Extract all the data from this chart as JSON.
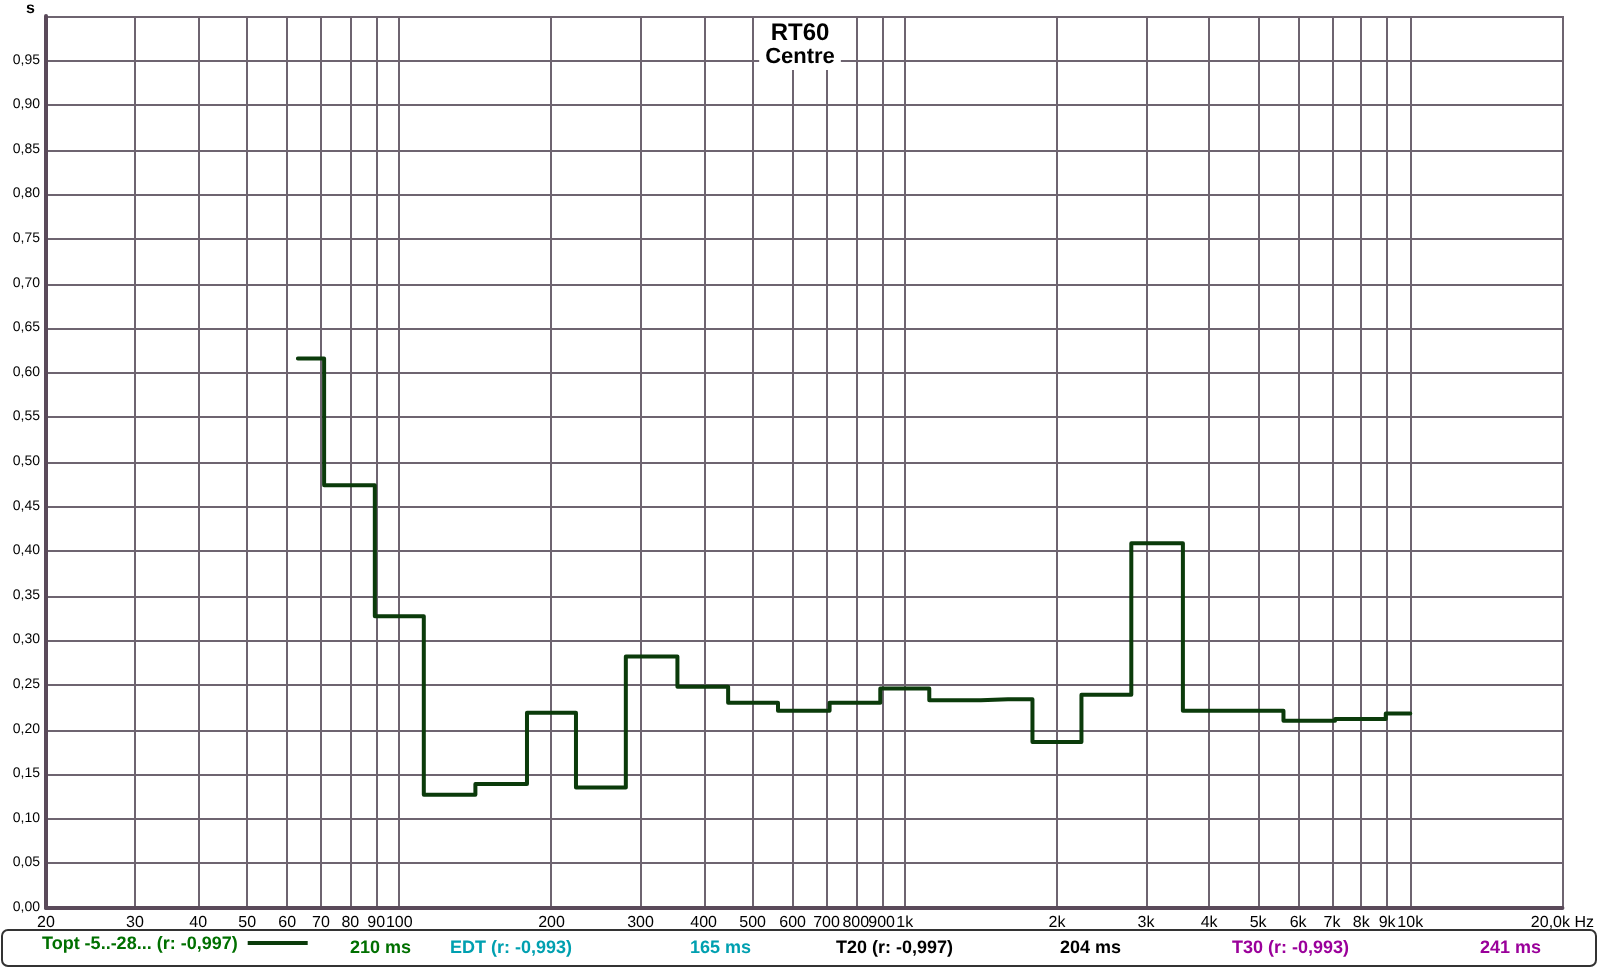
{
  "chart_data": {
    "type": "step",
    "title": "RT60",
    "subtitle": "Centre",
    "ylabel": "s",
    "x": [
      63,
      80,
      100,
      125,
      160,
      200,
      250,
      315,
      400,
      500,
      630,
      800,
      1000,
      1250,
      1600,
      2000,
      2500,
      3150,
      4000,
      5000,
      6300,
      8000,
      10000
    ],
    "series": [
      {
        "name": "Topt -5..-28... (r: -0,997)",
        "color": "#0b3b0b",
        "values": [
          0.616,
          0.474,
          0.327,
          0.127,
          0.139,
          0.219,
          0.135,
          0.282,
          0.248,
          0.23,
          0.221,
          0.23,
          0.246,
          0.233,
          0.234,
          0.186,
          0.239,
          0.409,
          0.221,
          0.221,
          0.21,
          0.212,
          0.218
        ]
      }
    ],
    "log": "x",
    "xlim": [
      20,
      20000
    ],
    "xticks": [
      20,
      30,
      40,
      50,
      60,
      70,
      80,
      90,
      100,
      200,
      300,
      400,
      500,
      600,
      700,
      800,
      900,
      {
        "value": 1000,
        "label": "1k"
      },
      {
        "value": 2000,
        "label": "2k"
      },
      {
        "value": 3000,
        "label": "3k"
      },
      {
        "value": 4000,
        "label": "4k"
      },
      {
        "value": 5000,
        "label": "5k"
      },
      {
        "value": 6000,
        "label": "6k"
      },
      {
        "value": 7000,
        "label": "7k"
      },
      {
        "value": 8000,
        "label": "8k"
      },
      {
        "value": 9000,
        "label": "9k"
      },
      {
        "value": 10000,
        "label": "10k"
      },
      {
        "value": 20000,
        "label": "20,0k Hz"
      }
    ],
    "ylim": [
      0,
      1
    ],
    "yticks": [
      {
        "value": 0,
        "label": "0,00"
      },
      {
        "value": 0.05,
        "label": "0,05"
      },
      {
        "value": 0.1,
        "label": "0,10"
      },
      {
        "value": 0.15,
        "label": "0,15"
      },
      {
        "value": 0.2,
        "label": "0,20"
      },
      {
        "value": 0.25,
        "label": "0,25"
      },
      {
        "value": 0.3,
        "label": "0,30"
      },
      {
        "value": 0.35,
        "label": "0,35"
      },
      {
        "value": 0.4,
        "label": "0,40"
      },
      {
        "value": 0.45,
        "label": "0,45"
      },
      {
        "value": 0.5,
        "label": "0,50"
      },
      {
        "value": 0.55,
        "label": "0,55"
      },
      {
        "value": 0.6,
        "label": "0,60"
      },
      {
        "value": 0.65,
        "label": "0,65"
      },
      {
        "value": 0.7,
        "label": "0,70"
      },
      {
        "value": 0.75,
        "label": "0,75"
      },
      {
        "value": 0.8,
        "label": "0,80"
      },
      {
        "value": 0.85,
        "label": "0,85"
      },
      {
        "value": 0.9,
        "label": "0,90"
      },
      {
        "value": 0.95,
        "label": "0,95"
      },
      {
        "value": 1,
        "label": null
      }
    ],
    "annotations": [
      "210 ms",
      "EDT (r: -0,993)",
      "165 ms",
      "T20 (r: -0,997)",
      "204 ms",
      "T30 (r: -0,993)",
      "241 ms"
    ],
    "grid": true,
    "legend": "bottom",
    "marker": "none",
    "line_style": "solid"
  }
}
